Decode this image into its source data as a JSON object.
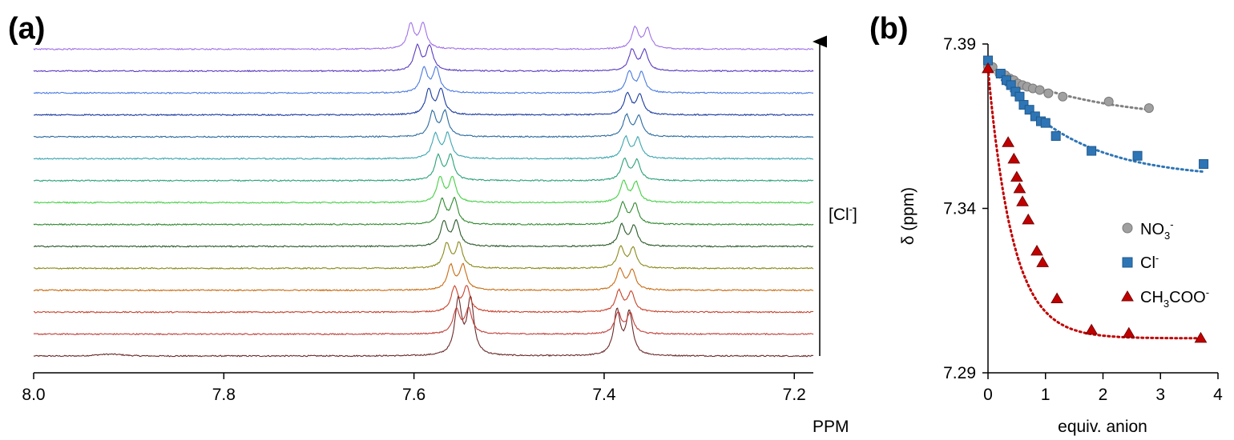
{
  "figure": {
    "panel_a_label": "(a)",
    "panel_b_label": "(b)"
  },
  "chart_data": [
    {
      "type": "line",
      "panel": "(a)",
      "xlabel": "PPM",
      "xlim": [
        8.0,
        7.18
      ],
      "x_axis_reversed": true,
      "x_ticks": [
        "8.0",
        "7.8",
        "7.6",
        "7.4",
        "7.2"
      ],
      "arrow_label": "[Cl⁻]",
      "arrow_label_base": "[Cl",
      "arrow_label_sup": "-",
      "arrow_label_end": "]",
      "spectra_doublet_spacing_ppm": 0.013,
      "series": [
        {
          "color": "#6b2a2a",
          "peak1": 7.547,
          "peak2": 7.38
        },
        {
          "color": "#c0403a",
          "peak1": 7.549,
          "peak2": 7.379
        },
        {
          "color": "#c8402a",
          "peak1": 7.551,
          "peak2": 7.378
        },
        {
          "color": "#c86a10",
          "peak1": 7.555,
          "peak2": 7.377
        },
        {
          "color": "#8a8a1a",
          "peak1": 7.559,
          "peak2": 7.376
        },
        {
          "color": "#2a5a2a",
          "peak1": 7.562,
          "peak2": 7.375
        },
        {
          "color": "#2e8a2e",
          "peak1": 7.564,
          "peak2": 7.374
        },
        {
          "color": "#44d044",
          "peak1": 7.566,
          "peak2": 7.373
        },
        {
          "color": "#2aa07a",
          "peak1": 7.568,
          "peak2": 7.372
        },
        {
          "color": "#3aa6b0",
          "peak1": 7.571,
          "peak2": 7.371
        },
        {
          "color": "#2a6aa0",
          "peak1": 7.574,
          "peak2": 7.37
        },
        {
          "color": "#1a3aa0",
          "peak1": 7.578,
          "peak2": 7.369
        },
        {
          "color": "#4a7ae0",
          "peak1": 7.583,
          "peak2": 7.367
        },
        {
          "color": "#5a3ac0",
          "peak1": 7.59,
          "peak2": 7.364
        },
        {
          "color": "#a070e8",
          "peak1": 7.597,
          "peak2": 7.361
        }
      ]
    },
    {
      "type": "scatter",
      "panel": "(b)",
      "xlabel": "equiv. anion",
      "ylabel": "δ (ppm)",
      "xlim": [
        0,
        4
      ],
      "ylim": [
        7.29,
        7.39
      ],
      "x_ticks": [
        "0",
        "1",
        "2",
        "3",
        "4"
      ],
      "y_ticks": [
        "7.29",
        "7.34",
        "7.39"
      ],
      "legend_position": "right",
      "series": [
        {
          "name": "NO3-",
          "label_base": "NO",
          "label_sub": "3",
          "label_sup": "-",
          "marker": "circle",
          "color": "#a0a0a0",
          "edge": "#7a7a7a",
          "x": [
            0.0,
            0.08,
            0.2,
            0.3,
            0.38,
            0.45,
            0.52,
            0.6,
            0.68,
            0.78,
            0.9,
            1.05,
            1.3,
            2.1,
            2.8
          ],
          "y": [
            7.383,
            7.383,
            7.381,
            7.3805,
            7.3795,
            7.379,
            7.378,
            7.3775,
            7.377,
            7.3765,
            7.376,
            7.375,
            7.374,
            7.3725,
            7.3705
          ],
          "fit": {
            "ymin": 7.3665,
            "k": 0.55
          }
        },
        {
          "name": "Cl-",
          "label_base": "Cl",
          "label_sub": "",
          "label_sup": "-",
          "marker": "square",
          "color": "#2e75b6",
          "edge": "#1f5a8c",
          "x": [
            0.0,
            0.22,
            0.32,
            0.4,
            0.48,
            0.55,
            0.62,
            0.72,
            0.82,
            0.92,
            1.0,
            1.18,
            1.8,
            2.6,
            3.75
          ],
          "y": [
            7.385,
            7.381,
            7.379,
            7.3775,
            7.3755,
            7.374,
            7.3715,
            7.37,
            7.368,
            7.3665,
            7.366,
            7.362,
            7.3575,
            7.356,
            7.3535
          ],
          "fit": {
            "ymin": 7.349,
            "k": 0.75
          }
        },
        {
          "name": "CH3COO-",
          "label_base": "CH",
          "label_sub": "3",
          "label_mid": "COO",
          "label_sup": "-",
          "marker": "triangle",
          "color": "#c00000",
          "edge": "#7a0000",
          "x": [
            0.0,
            0.35,
            0.45,
            0.5,
            0.55,
            0.6,
            0.7,
            0.85,
            0.95,
            1.2,
            1.8,
            2.45,
            3.7
          ],
          "y": [
            7.3825,
            7.36,
            7.355,
            7.3495,
            7.346,
            7.342,
            7.3365,
            7.327,
            7.3235,
            7.3125,
            7.303,
            7.302,
            7.3005
          ],
          "fit": {
            "ymin": 7.3005,
            "k": 1.45
          }
        }
      ]
    }
  ]
}
